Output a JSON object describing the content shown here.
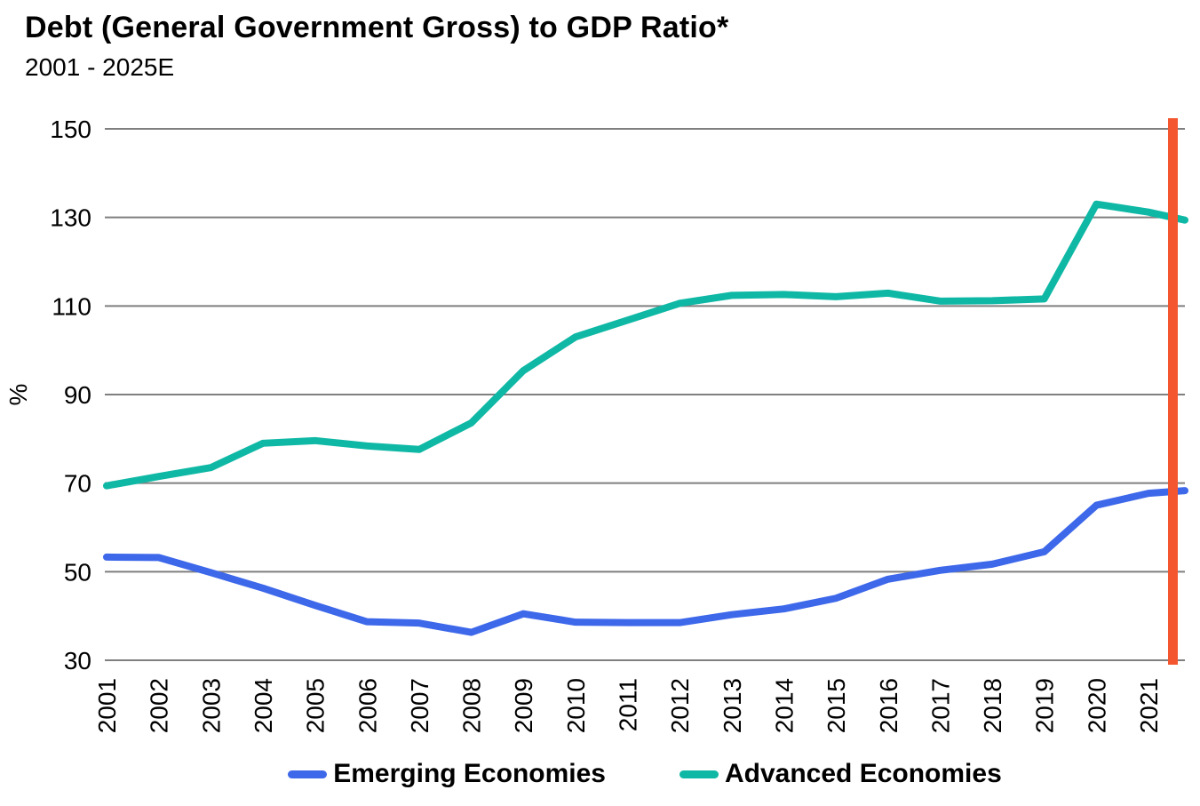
{
  "header": {
    "title": "Debt (General Government Gross) to GDP Ratio*",
    "subtitle": "2001 - 2025E"
  },
  "legend": [
    {
      "label": "Emerging Economies",
      "color": "#3E68EA"
    },
    {
      "label": "Advanced Economies",
      "color": "#0FB8A5"
    }
  ],
  "chart_data": {
    "type": "line",
    "title": "Debt (General Government Gross) to GDP Ratio*",
    "subtitle": "2001 - 2025E",
    "xlabel": "",
    "ylabel": "%",
    "ylim": [
      30,
      150
    ],
    "yticks": [
      150,
      130,
      110,
      90,
      70,
      50,
      30
    ],
    "grid": true,
    "grid_color": "#7F7F7F",
    "legend_position": "bottom-center",
    "x_tick_label_rotation": -90,
    "categories": [
      "2001",
      "2002",
      "2003",
      "2004",
      "2005",
      "2006",
      "2007",
      "2008",
      "2009",
      "2010",
      "2011",
      "2012",
      "2013",
      "2014",
      "2015",
      "2016",
      "2017",
      "2018",
      "2019",
      "2020",
      "2021"
    ],
    "series": [
      {
        "name": "Emerging Economies",
        "color": "#3E68EA",
        "values": [
          53.3,
          53.2,
          49.8,
          46.3,
          42.4,
          38.7,
          38.4,
          36.3,
          40.5,
          38.6,
          38.5,
          38.5,
          40.3,
          41.6,
          44.0,
          48.3,
          50.3,
          51.7,
          54.5,
          65.0,
          67.7
        ],
        "value_at_cutoff": 68.3
      },
      {
        "name": "Advanced Economies",
        "color": "#0FB8A5",
        "values": [
          69.4,
          71.5,
          73.5,
          79.0,
          79.6,
          78.4,
          77.6,
          83.6,
          95.4,
          103.0,
          106.8,
          110.6,
          112.4,
          112.6,
          112.1,
          112.9,
          111.1,
          111.2,
          111.6,
          133.0,
          131.2
        ],
        "value_at_cutoff": 129.4
      }
    ],
    "cutoff_line": {
      "color": "#F4572F",
      "note": "thick vertical marker at right edge of plot, just after 2021; series lines pass slightly beyond it"
    }
  }
}
